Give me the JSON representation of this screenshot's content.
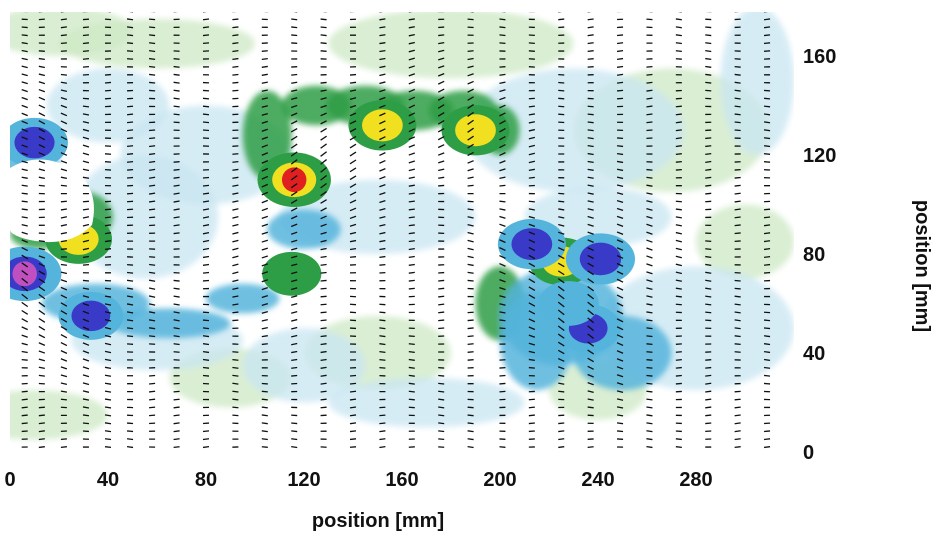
{
  "chart_data": {
    "type": "heatmap",
    "title": "",
    "xlabel": "position [mm]",
    "ylabel": "position [mm]",
    "xlim": [
      0,
      320
    ],
    "ylim": [
      0,
      180
    ],
    "x_ticks": [
      "0",
      "40",
      "80",
      "120",
      "160",
      "200",
      "240",
      "280"
    ],
    "y_ticks": [
      "0",
      "40",
      "80",
      "120",
      "160"
    ],
    "y_axis_side": "right",
    "grid": false,
    "legend": "none",
    "colors": {
      "background": "#ffffff",
      "low_light": "#c8e6f2",
      "low_mid": "#55b4dc",
      "low_strong": "#3a3ac8",
      "low_extreme": "#c050c0",
      "high_light": "#cde8c4",
      "high_mid": "#2e9e46",
      "high_strong": "#f0e020",
      "high_extreme": "#e02020",
      "vectors": "#111111"
    },
    "hotspots": [
      {
        "x": 116,
        "y": 110,
        "value": 1.0
      },
      {
        "x": 152,
        "y": 132,
        "value": 0.75
      },
      {
        "x": 190,
        "y": 130,
        "value": 0.75
      },
      {
        "x": 28,
        "y": 86,
        "value": 0.7
      },
      {
        "x": 225,
        "y": 77,
        "value": 0.6
      },
      {
        "x": 115,
        "y": 72,
        "value": 0.35
      },
      {
        "x": 6,
        "y": 72,
        "value": -1.0
      },
      {
        "x": 10,
        "y": 125,
        "value": -0.7
      },
      {
        "x": 33,
        "y": 55,
        "value": -0.6
      },
      {
        "x": 213,
        "y": 84,
        "value": -0.75
      },
      {
        "x": 241,
        "y": 78,
        "value": -0.8
      },
      {
        "x": 236,
        "y": 50,
        "value": -0.6
      },
      {
        "x": 228,
        "y": 60,
        "value": -0.4
      }
    ],
    "vector_columns_x": [
      6,
      13,
      22,
      31,
      40,
      49,
      58,
      68,
      80,
      92,
      104,
      116,
      128,
      140,
      152,
      164,
      176,
      188,
      201,
      213,
      225,
      237,
      249,
      261,
      273,
      285,
      297,
      309
    ]
  }
}
